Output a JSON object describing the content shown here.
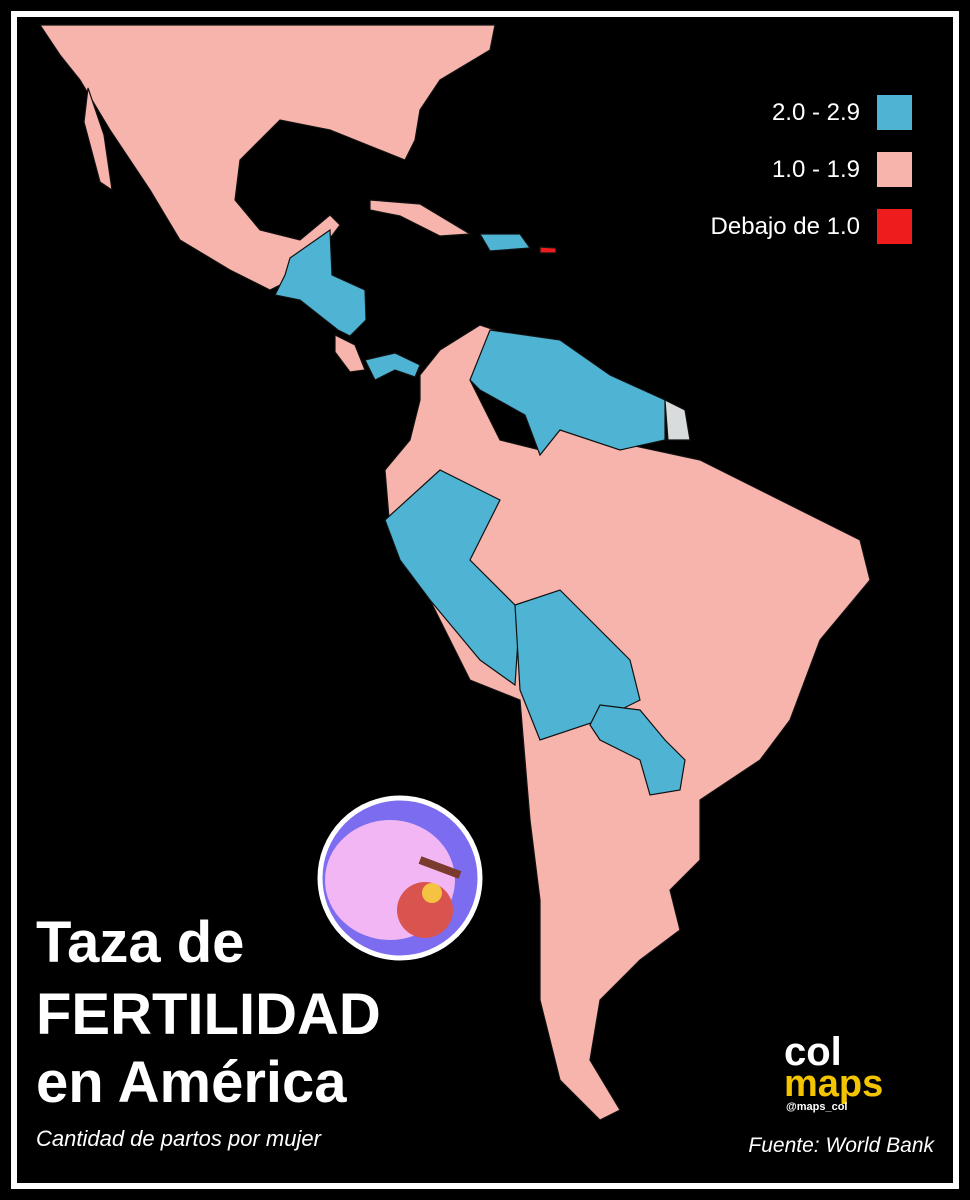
{
  "title_lines": [
    "Taza de",
    "FERTILIDAD",
    "en América"
  ],
  "subtitle": "Cantidad de partos por mujer",
  "source": "Fuente: World Bank",
  "legend": [
    {
      "label": "2.0 - 2.9",
      "color": "#4fb3d3"
    },
    {
      "label": "1.0 - 1.9",
      "color": "#f7b4ac"
    },
    {
      "label": "Debajo de 1.0",
      "color": "#ee1c1c"
    }
  ],
  "logo": {
    "line1": "col",
    "line2": "maps",
    "handle": "@maps_col"
  }
}
